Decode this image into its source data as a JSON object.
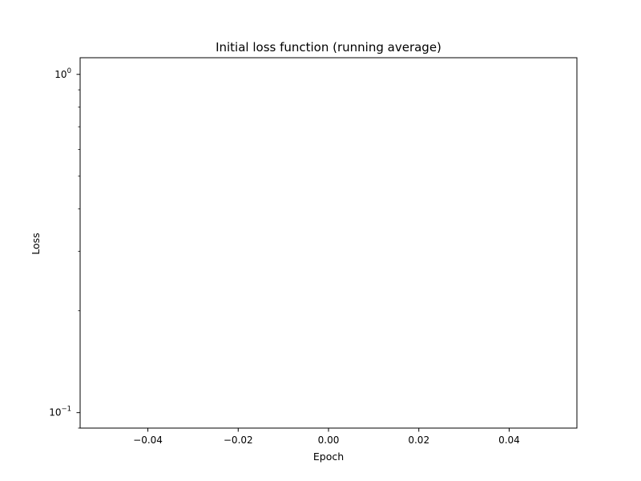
{
  "chart_data": {
    "type": "line",
    "title": "Initial loss function (running average)",
    "xlabel": "Epoch",
    "ylabel": "Loss",
    "xlim": [
      -0.055,
      0.055
    ],
    "ylim": [
      0.09,
      1.12
    ],
    "yscale": "log",
    "grid": false,
    "xticks": [
      -0.04,
      -0.02,
      0.0,
      0.02,
      0.04
    ],
    "xtick_labels": [
      "−0.04",
      "−0.02",
      "0.00",
      "0.02",
      "0.04"
    ],
    "yticks_major": [
      {
        "value": 1,
        "base": "10",
        "exp": "0"
      },
      {
        "value": 0.1,
        "base": "10",
        "exp": "−1"
      }
    ],
    "series": [
      {
        "x": [],
        "y": []
      }
    ]
  }
}
